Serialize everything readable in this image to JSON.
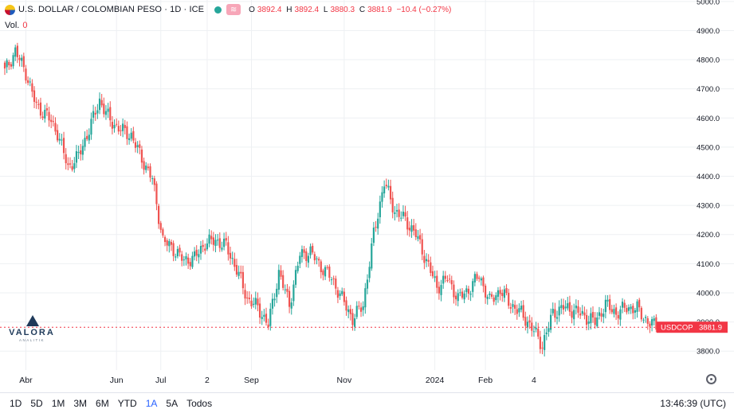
{
  "legend": {
    "title": "U.S. DOLLAR / COLOMBIAN PESO · 1D · ICE",
    "open_label": "O",
    "open_value": "3892.4",
    "high_label": "H",
    "high_value": "3892.4",
    "low_label": "L",
    "low_value": "3880.3",
    "close_label": "C",
    "close_value": "3881.9",
    "change": "−10.4 (−0.27%)"
  },
  "volume": {
    "label": "Vol.",
    "value": "0"
  },
  "watermark": {
    "name": "VALORA",
    "tagline": "ANALITIK"
  },
  "price_tag": {
    "symbol": "USDCOP",
    "price": "3881.9"
  },
  "timeframes": [
    "1D",
    "5D",
    "1M",
    "3M",
    "6M",
    "YTD",
    "1A",
    "5A",
    "Todos"
  ],
  "active_timeframe": "1A",
  "clock": "13:46:39 (UTC)",
  "colors": {
    "up": "#26a69a",
    "down": "#ef5350",
    "current_line": "#f23645",
    "grid": "#eef0f3"
  },
  "chart_data": {
    "type": "candlestick",
    "y_ticks": [
      3800,
      3900,
      4000,
      4100,
      4200,
      4300,
      4400,
      4500,
      4600,
      4700,
      4800,
      4900,
      5000
    ],
    "y_tick_labels": [
      "3800.0",
      "3900.0",
      "4000.0",
      "4100.0",
      "4200.0",
      "4300.0",
      "4400.0",
      "4500.0",
      "4600.0",
      "4700.0",
      "4800.0",
      "4900.0",
      "5000.0"
    ],
    "y_range": [
      3735,
      5005
    ],
    "x_ticks": [
      {
        "label": "Abr",
        "index": 10
      },
      {
        "label": "Jun",
        "index": 53
      },
      {
        "label": "Jul",
        "index": 74
      },
      {
        "label": "2",
        "index": 96
      },
      {
        "label": "Sep",
        "index": 117
      },
      {
        "label": "Nov",
        "index": 161
      },
      {
        "label": "2024",
        "index": 204
      },
      {
        "label": "Feb",
        "index": 228
      },
      {
        "label": "4",
        "index": 251
      }
    ],
    "current_price": 3881.9,
    "grid": true,
    "candles_per_week": 5,
    "weekly_closes": [
      4760,
      4830,
      4755,
      4640,
      4610,
      4550,
      4430,
      4470,
      4560,
      4660,
      4590,
      4560,
      4540,
      4460,
      4390,
      4180,
      4150,
      4110,
      4120,
      4170,
      4180,
      4160,
      4080,
      3980,
      3950,
      3890,
      4070,
      3960,
      4130,
      4140,
      4090,
      4050,
      3980,
      3910,
      3960,
      4200,
      4380,
      4280,
      4250,
      4200,
      4110,
      4020,
      4050,
      3980,
      4010,
      4060,
      3970,
      4010,
      3960,
      3930,
      3880,
      3820,
      3930,
      3950,
      3940,
      3920,
      3900,
      3960,
      3930,
      3950,
      3945,
      3900,
      3881.9
    ]
  }
}
